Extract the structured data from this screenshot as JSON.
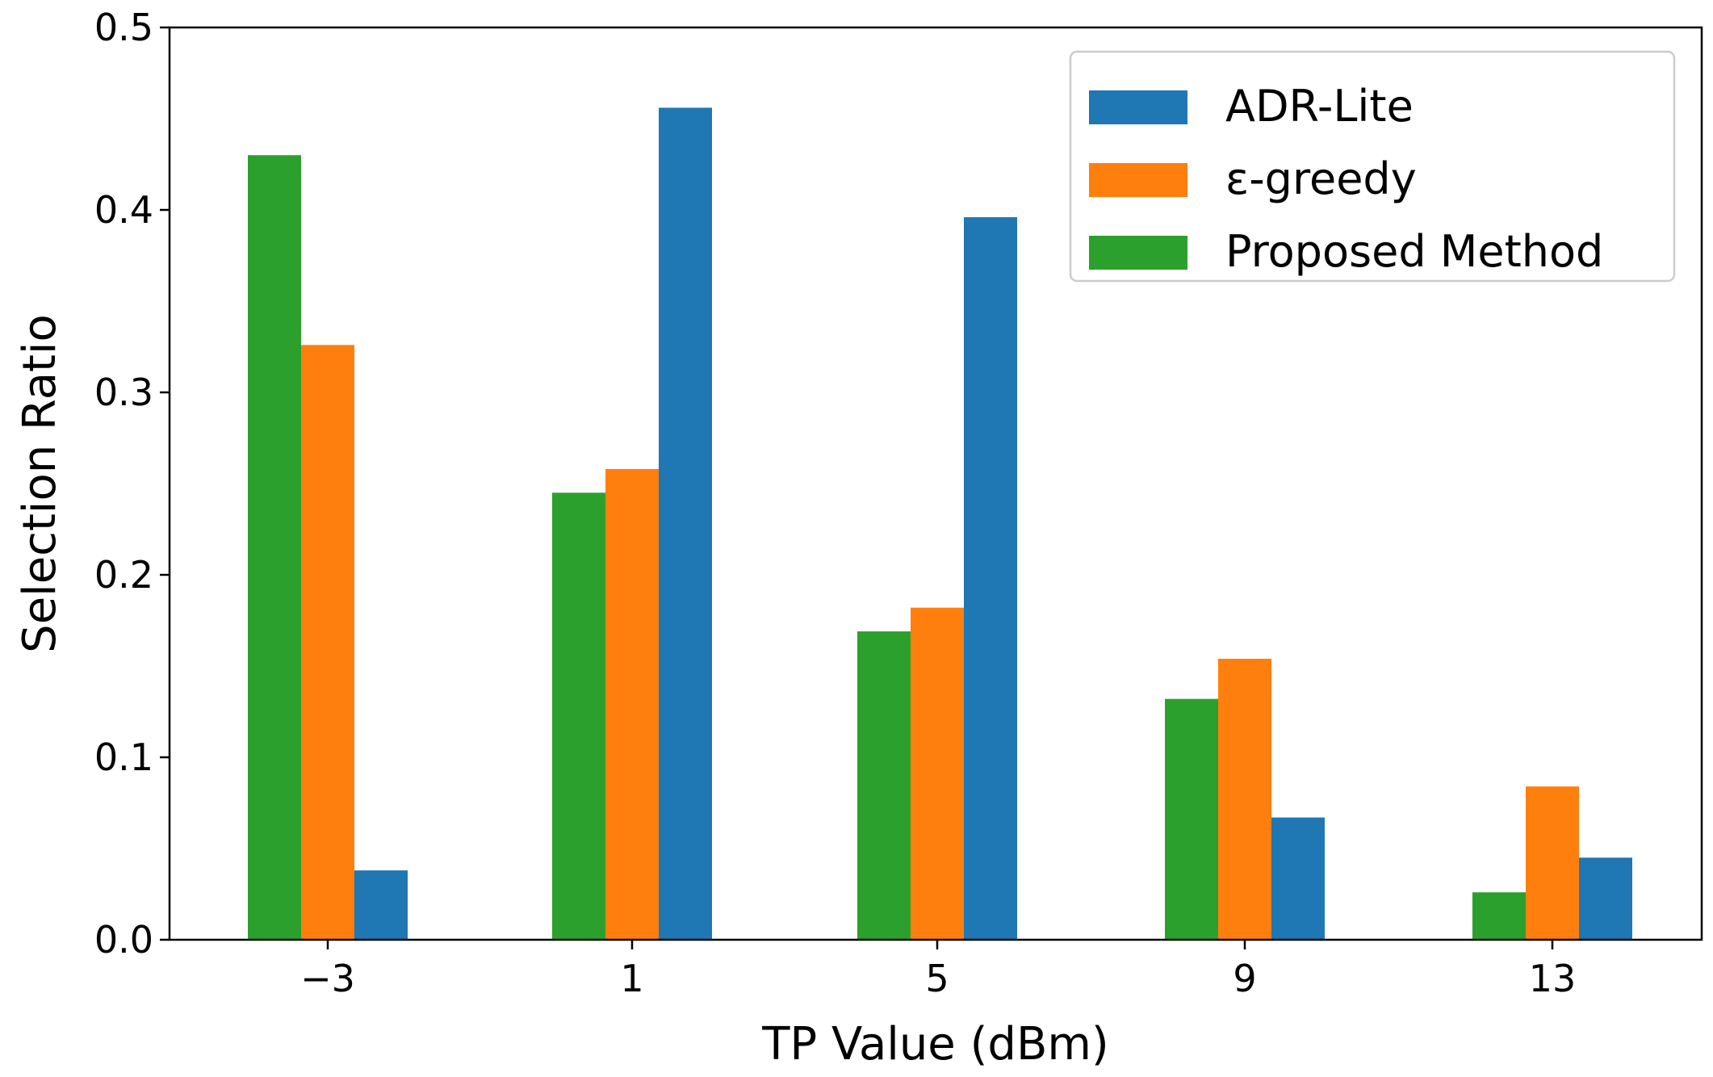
{
  "chart_data": {
    "type": "bar",
    "title": "",
    "xlabel": "TP Value (dBm)",
    "ylabel": "Selection Ratio",
    "categories": [
      "−3",
      "1",
      "5",
      "9",
      "13"
    ],
    "ylim": [
      0,
      0.5
    ],
    "yticks": [
      0.0,
      0.1,
      0.2,
      0.3,
      0.4,
      0.5
    ],
    "ytick_labels": [
      "0.0",
      "0.1",
      "0.2",
      "0.3",
      "0.4",
      "0.5"
    ],
    "grid": false,
    "legend_position": "top-right",
    "series": [
      {
        "name": "Proposed Method",
        "color": "#2ca02c",
        "values": [
          0.43,
          0.245,
          0.169,
          0.132,
          0.026
        ]
      },
      {
        "name": "ε-greedy",
        "color": "#ff7f0e",
        "values": [
          0.326,
          0.258,
          0.182,
          0.154,
          0.084
        ]
      },
      {
        "name": "ADR-Lite",
        "color": "#1f77b4",
        "values": [
          0.038,
          0.456,
          0.396,
          0.067,
          0.045
        ]
      }
    ],
    "legend_order": [
      "ADR-Lite",
      "ε-greedy",
      "Proposed Method"
    ]
  }
}
